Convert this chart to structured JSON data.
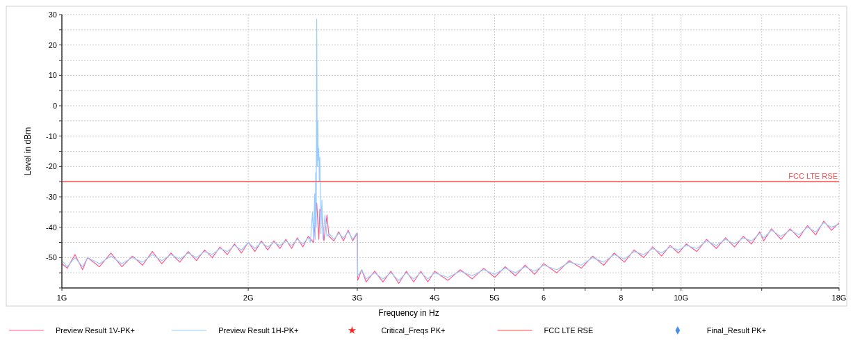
{
  "chart_data": {
    "type": "line",
    "xlabel": "Frequency in Hz",
    "ylabel": "Level in dBm",
    "log": "x",
    "grid": true,
    "legend": "bottom",
    "line_style": "solid",
    "marker": "none",
    "xlim": [
      1,
      18
    ],
    "ylim": [
      -60,
      30
    ],
    "xticks": [
      {
        "value": 1,
        "label": "1G"
      },
      {
        "value": 2,
        "label": "2G"
      },
      {
        "value": 3,
        "label": "3G"
      },
      {
        "value": 4,
        "label": "4G"
      },
      {
        "value": 5,
        "label": "5G"
      },
      6,
      {
        "value": 7,
        "label": null
      },
      8,
      {
        "value": 9,
        "label": null
      },
      {
        "value": 10,
        "label": "10G"
      },
      {
        "value": 13.5,
        "label": null
      },
      {
        "value": 18,
        "label": "18G"
      }
    ],
    "yticks": [
      {
        "value": -60,
        "label": null
      },
      {
        "value": -55,
        "label": null
      },
      -50,
      {
        "value": -45,
        "label": null
      },
      -40,
      {
        "value": -35,
        "label": null
      },
      -30,
      {
        "value": -25,
        "label": null
      },
      -20,
      {
        "value": -15,
        "label": null
      },
      -10,
      {
        "value": -5,
        "label": null
      },
      0,
      {
        "value": 5,
        "label": null
      },
      10,
      {
        "value": 15,
        "label": null
      },
      20,
      {
        "value": 25,
        "label": null
      },
      30
    ],
    "annotations": [
      "Critical_Freqs PK+",
      "Final_Result PK+"
    ],
    "ref_lines": [
      {
        "axis": "y",
        "value": -25,
        "label": "FCC LTE RSE",
        "color": "#ff4b4b"
      }
    ],
    "series": [
      {
        "name": "Preview Result 1V-PK+",
        "color": "#ff5a8c",
        "x": [
          1,
          1.02,
          1.05,
          1.08,
          1.1,
          1.15,
          1.2,
          1.25,
          1.3,
          1.35,
          1.4,
          1.45,
          1.5,
          1.55,
          1.6,
          1.65,
          1.7,
          1.75,
          1.8,
          1.85,
          1.9,
          1.95,
          2,
          2.05,
          2.1,
          2.15,
          2.2,
          2.25,
          2.3,
          2.35,
          2.4,
          2.45,
          2.5,
          2.55,
          2.58,
          2.6,
          2.61,
          2.63,
          2.65,
          2.68,
          2.7,
          2.75,
          2.8,
          2.85,
          2.9,
          2.95,
          3,
          3.005,
          3.05,
          3.1,
          3.2,
          3.3,
          3.4,
          3.5,
          3.6,
          3.7,
          3.8,
          3.9,
          4,
          4.2,
          4.4,
          4.6,
          4.8,
          5,
          5.2,
          5.4,
          5.6,
          5.8,
          6,
          6.3,
          6.6,
          6.9,
          7.2,
          7.5,
          7.8,
          8.1,
          8.4,
          8.7,
          9,
          9.3,
          9.6,
          9.9,
          10.2,
          10.6,
          11,
          11.4,
          11.8,
          12.2,
          12.6,
          13,
          13.4,
          13.6,
          14,
          14.5,
          15,
          15.5,
          16,
          16.5,
          17,
          17.5,
          18
        ],
        "values": [
          -52,
          -53.5,
          -49,
          -54,
          -50,
          -53,
          -48.5,
          -53,
          -49.5,
          -52.5,
          -48,
          -52,
          -48.5,
          -51.5,
          -48,
          -51,
          -47.5,
          -50,
          -46.5,
          -49,
          -45.5,
          -48.5,
          -45,
          -48,
          -44.5,
          -47.5,
          -44.5,
          -47,
          -44,
          -47,
          -43.5,
          -46.5,
          -43,
          -45,
          -32,
          -44,
          -34,
          -35,
          -44.5,
          -36,
          -43,
          -44.5,
          -41.5,
          -44.5,
          -41,
          -44.5,
          -42,
          -57.5,
          -54,
          -58,
          -54.5,
          -58,
          -54.5,
          -58.5,
          -54.5,
          -58,
          -54.5,
          -58,
          -54.5,
          -57.5,
          -54,
          -57,
          -53.5,
          -56.5,
          -53,
          -56,
          -52.5,
          -55.5,
          -52,
          -55,
          -51,
          -53.5,
          -49.5,
          -52.5,
          -48.5,
          -51.5,
          -47.5,
          -50,
          -46.5,
          -49.5,
          -46,
          -48.5,
          -45.5,
          -48,
          -44,
          -47,
          -43.5,
          -46.5,
          -43,
          -45.5,
          -41.5,
          -44.5,
          -40.5,
          -44,
          -40.5,
          -43.5,
          -39.5,
          -42.5,
          -38,
          -41,
          -38.5
        ]
      },
      {
        "name": "Preview Result 1H-PK+",
        "color": "#99ccff",
        "x": [
          1,
          1.02,
          1.05,
          1.08,
          1.1,
          1.15,
          1.2,
          1.25,
          1.3,
          1.35,
          1.4,
          1.45,
          1.5,
          1.55,
          1.6,
          1.65,
          1.7,
          1.75,
          1.8,
          1.85,
          1.9,
          1.95,
          2,
          2.05,
          2.1,
          2.15,
          2.2,
          2.25,
          2.3,
          2.35,
          2.4,
          2.45,
          2.5,
          2.52,
          2.54,
          2.55,
          2.56,
          2.565,
          2.57,
          2.575,
          2.58,
          2.585,
          2.59,
          2.595,
          2.6,
          2.605,
          2.61,
          2.62,
          2.63,
          2.64,
          2.66,
          2.68,
          2.7,
          2.75,
          2.8,
          2.85,
          2.9,
          2.95,
          2.99,
          3,
          3.005,
          3.05,
          3.1,
          3.2,
          3.3,
          3.4,
          3.5,
          3.6,
          3.7,
          3.8,
          3.9,
          4,
          4.2,
          4.4,
          4.6,
          4.8,
          5,
          5.2,
          5.4,
          5.6,
          5.8,
          6,
          6.3,
          6.6,
          6.9,
          7.2,
          7.5,
          7.8,
          8.1,
          8.4,
          8.7,
          9,
          9.3,
          9.6,
          9.9,
          10.2,
          10.6,
          11,
          11.4,
          11.8,
          12.2,
          12.6,
          13,
          13.4,
          13.6,
          14,
          14.5,
          15,
          15.5,
          16,
          16.5,
          17,
          17.5,
          18
        ],
        "values": [
          -51,
          -53,
          -50,
          -53,
          -50,
          -52,
          -49.5,
          -52,
          -50,
          -51.5,
          -49,
          -51,
          -49,
          -50.5,
          -48.5,
          -50,
          -48,
          -49,
          -47,
          -48,
          -46,
          -47.5,
          -45,
          -47,
          -45,
          -46.5,
          -45,
          -46,
          -44.5,
          -46,
          -44,
          -45.5,
          -43.5,
          -45,
          -35,
          -44,
          -29,
          -44,
          -22,
          -40,
          28.5,
          -20,
          -5,
          -18,
          -14,
          -25,
          -17,
          -42,
          -31,
          -44,
          -36,
          -43,
          -42,
          -44,
          -42,
          -43.5,
          -41.5,
          -44,
          -42,
          -43,
          -56,
          -54,
          -57,
          -55,
          -57,
          -55,
          -57.5,
          -55,
          -57,
          -55,
          -57,
          -55,
          -56.5,
          -54.5,
          -56,
          -54,
          -55.5,
          -53.5,
          -55,
          -53,
          -54.5,
          -52.5,
          -54,
          -51.5,
          -52.5,
          -50,
          -51.5,
          -49,
          -50.5,
          -48,
          -49,
          -47,
          -48.5,
          -46.5,
          -47.5,
          -46,
          -47,
          -44.5,
          -46,
          -44,
          -45.5,
          -43.5,
          -44.5,
          -42,
          -43.5,
          -41,
          -43,
          -41,
          -42.5,
          -40,
          -41.5,
          -38.5,
          -40,
          -39
        ]
      }
    ]
  }
}
